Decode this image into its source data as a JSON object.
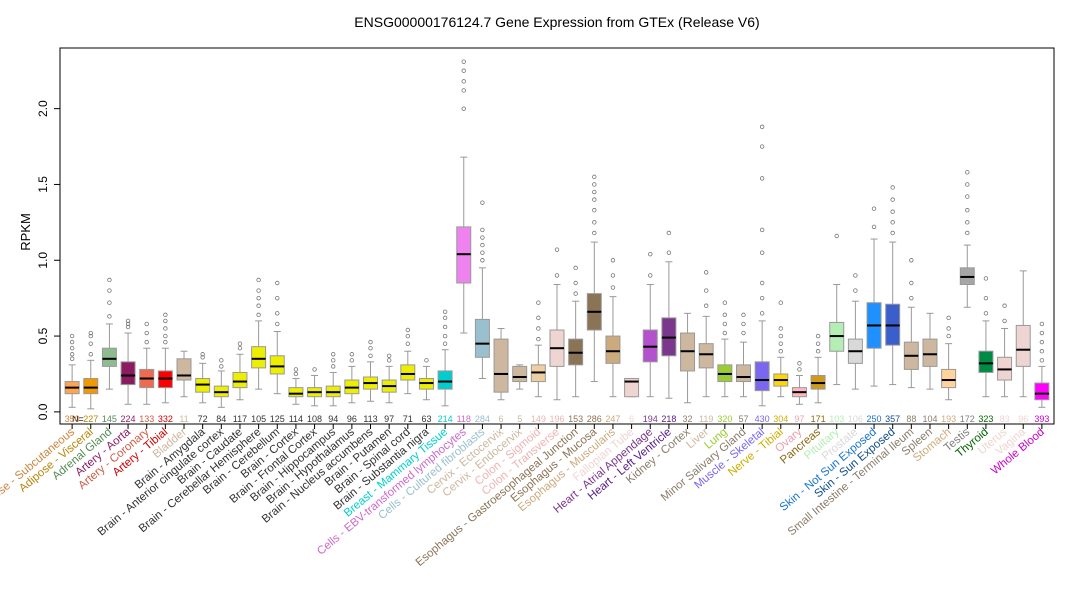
{
  "chart_data": {
    "type": "boxplot",
    "title": "ENSG00000176124.7 Gene Expression from GTEx (Release V6)",
    "ylabel": "RPKM",
    "xlabel": "",
    "ylim": [
      -0.08,
      2.4
    ],
    "yticks": [
      0.0,
      0.5,
      1.0,
      1.5,
      2.0
    ],
    "ytick_labels": [
      "0.0",
      "0.5",
      "1.0",
      "1.5",
      "2.0"
    ],
    "n_prefix": "N=",
    "grid": false,
    "legend": "none",
    "tissues": [
      {
        "name": "Adipose - Subcutaneous",
        "n": "350",
        "color": "#FFA54F",
        "label_color": "#CD853F",
        "stats": [
          0.03,
          0.12,
          0.16,
          0.2,
          0.31
        ],
        "outliers": [
          0.35,
          0.38,
          0.42,
          0.46,
          0.5
        ]
      },
      {
        "name": "Adipose - Visceral",
        "n": "227",
        "color": "#EE9A00",
        "label_color": "#B8860B",
        "stats": [
          0.02,
          0.12,
          0.16,
          0.22,
          0.34
        ],
        "outliers": [
          0.38,
          0.45,
          0.5,
          0.52
        ]
      },
      {
        "name": "Adrenal Gland",
        "n": "145",
        "color": "#8FBC8F",
        "label_color": "#548B54",
        "stats": [
          0.15,
          0.3,
          0.35,
          0.42,
          0.58
        ],
        "outliers": [
          0.63,
          0.72,
          0.8,
          0.87
        ]
      },
      {
        "name": "Artery - Aorta",
        "n": "224",
        "color": "#8B1C62",
        "label_color": "#8B1C62",
        "stats": [
          0.05,
          0.18,
          0.24,
          0.33,
          0.52
        ],
        "outliers": [
          0.56,
          0.58,
          0.6
        ]
      },
      {
        "name": "Artery - Coronary",
        "n": "133",
        "color": "#EE6A50",
        "label_color": "#CD5B45",
        "stats": [
          0.05,
          0.16,
          0.22,
          0.28,
          0.42
        ],
        "outliers": [
          0.46,
          0.52,
          0.58
        ]
      },
      {
        "name": "Artery - Tibial",
        "n": "332",
        "color": "#FF0000",
        "label_color": "#CD0000",
        "stats": [
          0.06,
          0.16,
          0.22,
          0.27,
          0.42
        ],
        "outliers": [
          0.46,
          0.5,
          0.55,
          0.6,
          0.64
        ]
      },
      {
        "name": "Bladder",
        "n": "11",
        "color": "#CDB79E",
        "label_color": "#CDB79E",
        "stats": [
          0.1,
          0.21,
          0.24,
          0.35,
          0.4
        ],
        "outliers": []
      },
      {
        "name": "Brain - Amygdala",
        "n": "72",
        "color": "#EEEE00",
        "label_color": "#333333",
        "stats": [
          0.06,
          0.13,
          0.18,
          0.22,
          0.32
        ],
        "outliers": [
          0.36,
          0.38
        ]
      },
      {
        "name": "Brain - Anterior cingulate cortex",
        "n": "84",
        "color": "#EEEE00",
        "label_color": "#333333",
        "stats": [
          0.03,
          0.1,
          0.13,
          0.17,
          0.27
        ],
        "outliers": [
          0.3,
          0.34
        ]
      },
      {
        "name": "Brain - Caudate",
        "n": "117",
        "color": "#EEEE00",
        "label_color": "#333333",
        "stats": [
          0.08,
          0.16,
          0.2,
          0.26,
          0.38
        ],
        "outliers": [
          0.42,
          0.45
        ]
      },
      {
        "name": "Brain - Cerebellar Hemisphere",
        "n": "105",
        "color": "#EEEE00",
        "label_color": "#333333",
        "stats": [
          0.15,
          0.29,
          0.35,
          0.43,
          0.6
        ],
        "outliers": [
          0.64,
          0.7,
          0.75,
          0.8,
          0.87
        ]
      },
      {
        "name": "Brain - Cerebellum",
        "n": "125",
        "color": "#EEEE00",
        "label_color": "#333333",
        "stats": [
          0.12,
          0.25,
          0.3,
          0.37,
          0.53
        ],
        "outliers": [
          0.58,
          0.65,
          0.75,
          0.85
        ]
      },
      {
        "name": "Brain - Cortex",
        "n": "114",
        "color": "#EEEE00",
        "label_color": "#333333",
        "stats": [
          0.05,
          0.1,
          0.12,
          0.16,
          0.22
        ],
        "outliers": [
          0.25,
          0.28
        ]
      },
      {
        "name": "Brain - Frontal Cortex",
        "n": "108",
        "color": "#EEEE00",
        "label_color": "#333333",
        "stats": [
          0.04,
          0.1,
          0.13,
          0.16,
          0.24
        ],
        "outliers": [
          0.28
        ]
      },
      {
        "name": "Brain - Hippocampus",
        "n": "94",
        "color": "#EEEE00",
        "label_color": "#333333",
        "stats": [
          0.04,
          0.1,
          0.13,
          0.17,
          0.26
        ],
        "outliers": [
          0.3,
          0.34,
          0.38
        ]
      },
      {
        "name": "Brain - Hypothalamus",
        "n": "96",
        "color": "#EEEE00",
        "label_color": "#333333",
        "stats": [
          0.06,
          0.12,
          0.16,
          0.21,
          0.3
        ],
        "outliers": [
          0.34,
          0.38
        ]
      },
      {
        "name": "Brain - Nucleus accumbens",
        "n": "113",
        "color": "#EEEE00",
        "label_color": "#333333",
        "stats": [
          0.07,
          0.15,
          0.19,
          0.23,
          0.33
        ],
        "outliers": [
          0.37,
          0.42,
          0.46
        ]
      },
      {
        "name": "Brain - Putamen",
        "n": "97",
        "color": "#EEEE00",
        "label_color": "#333333",
        "stats": [
          0.06,
          0.13,
          0.17,
          0.21,
          0.3
        ],
        "outliers": [
          0.34,
          0.37
        ]
      },
      {
        "name": "Brain - Spinal cord",
        "n": "71",
        "color": "#EEEE00",
        "label_color": "#333333",
        "stats": [
          0.12,
          0.21,
          0.25,
          0.31,
          0.4
        ],
        "outliers": [
          0.45,
          0.5,
          0.54
        ]
      },
      {
        "name": "Brain - Substantia nigra",
        "n": "63",
        "color": "#EEEE00",
        "label_color": "#333333",
        "stats": [
          0.08,
          0.15,
          0.19,
          0.22,
          0.3
        ],
        "outliers": [
          0.34
        ]
      },
      {
        "name": "Breast - Mammary Tissue",
        "n": "214",
        "color": "#00CDCD",
        "label_color": "#00CDCD",
        "stats": [
          0.04,
          0.15,
          0.2,
          0.27,
          0.41
        ],
        "outliers": [
          0.45,
          0.5,
          0.56,
          0.62,
          0.66
        ]
      },
      {
        "name": "Cells - EBV-transformed lymphocytes",
        "n": "118",
        "color": "#EE82EE",
        "label_color": "#CD69C9",
        "stats": [
          0.52,
          0.85,
          1.04,
          1.22,
          1.68
        ],
        "outliers": [
          2.0,
          2.12,
          2.18,
          2.25,
          2.31
        ]
      },
      {
        "name": "Cells - Cultured fibroblasts",
        "n": "284",
        "color": "#9AC0CD",
        "label_color": "#9AC0CD",
        "stats": [
          0.22,
          0.36,
          0.45,
          0.61,
          0.95
        ],
        "outliers": [
          1.0,
          1.05,
          1.1,
          1.15,
          1.2,
          1.38
        ]
      },
      {
        "name": "Cervix - Ectocervix",
        "n": "6",
        "color": "#CDB79E",
        "label_color": "#CDB79E",
        "stats": [
          0.08,
          0.13,
          0.25,
          0.48,
          0.55
        ],
        "outliers": []
      },
      {
        "name": "Cervix - Endocervix",
        "n": "5",
        "color": "#CDB79E",
        "label_color": "#CDB79E",
        "stats": [
          0.15,
          0.2,
          0.23,
          0.3,
          0.31
        ],
        "outliers": []
      },
      {
        "name": "Colon - Sigmoid",
        "n": "149",
        "color": "#EECFA1",
        "label_color": "#EEB4B4",
        "stats": [
          0.1,
          0.2,
          0.26,
          0.31,
          0.44
        ],
        "outliers": [
          0.48,
          0.55,
          0.62,
          0.72
        ]
      },
      {
        "name": "Colon - Transverse",
        "n": "196",
        "color": "#EED5D2",
        "label_color": "#EEB4B4",
        "stats": [
          0.08,
          0.3,
          0.42,
          0.54,
          0.84
        ],
        "outliers": [
          0.9,
          1.07
        ]
      },
      {
        "name": "Esophagus - Gastroesophageal Junction",
        "n": "153",
        "color": "#8B7355",
        "label_color": "#8B7355",
        "stats": [
          0.1,
          0.31,
          0.39,
          0.48,
          0.73
        ],
        "outliers": [
          0.78,
          0.85,
          0.95
        ]
      },
      {
        "name": "Esophagus - Mucosa",
        "n": "286",
        "color": "#8B7355",
        "label_color": "#8B7355",
        "stats": [
          0.2,
          0.54,
          0.66,
          0.78,
          1.12
        ],
        "outliers": [
          1.18,
          1.25,
          1.33,
          1.4,
          1.45,
          1.5,
          1.55
        ]
      },
      {
        "name": "Esophagus - Muscularis",
        "n": "247",
        "color": "#CDAA7D",
        "label_color": "#CDAA7D",
        "stats": [
          0.1,
          0.32,
          0.4,
          0.5,
          0.76
        ],
        "outliers": [
          0.82,
          0.9,
          1.0
        ]
      },
      {
        "name": "Fallopian Tube",
        "n": "6",
        "color": "#EED5D2",
        "label_color": "#EED5D2",
        "stats": [
          0.1,
          0.1,
          0.2,
          0.22,
          0.22
        ],
        "outliers": []
      },
      {
        "name": "Heart - Atrial Appendage",
        "n": "194",
        "color": "#B452CD",
        "label_color": "#7A378B",
        "stats": [
          0.1,
          0.33,
          0.43,
          0.54,
          0.84
        ],
        "outliers": [
          0.9,
          1.04
        ]
      },
      {
        "name": "Heart - Left Ventricle",
        "n": "218",
        "color": "#7A378B",
        "label_color": "#551A8B",
        "stats": [
          0.09,
          0.37,
          0.49,
          0.62,
          0.99
        ],
        "outliers": [
          1.05,
          1.18
        ]
      },
      {
        "name": "Kidney - Cortex",
        "n": "32",
        "color": "#CDB79E",
        "label_color": "#8B7D6B",
        "stats": [
          0.06,
          0.27,
          0.4,
          0.52,
          0.65
        ],
        "outliers": []
      },
      {
        "name": "Liver",
        "n": "119",
        "color": "#CDB79E",
        "label_color": "#CDB79E",
        "stats": [
          0.1,
          0.29,
          0.38,
          0.45,
          0.63
        ],
        "outliers": [
          0.7,
          0.8,
          0.92
        ]
      },
      {
        "name": "Lung",
        "n": "320",
        "color": "#9ACD32",
        "label_color": "#9ACD32",
        "stats": [
          0.1,
          0.2,
          0.25,
          0.31,
          0.48
        ],
        "outliers": [
          0.52,
          0.58,
          0.64,
          0.72
        ]
      },
      {
        "name": "Minor Salivary Gland",
        "n": "57",
        "color": "#CDB79E",
        "label_color": "#8B7D6B",
        "stats": [
          0.1,
          0.2,
          0.23,
          0.31,
          0.46
        ],
        "outliers": [
          0.52,
          0.58,
          0.64
        ]
      },
      {
        "name": "Muscle - Skeletal",
        "n": "430",
        "color": "#7A67EE",
        "label_color": "#7A67EE",
        "stats": [
          0.04,
          0.14,
          0.21,
          0.33,
          0.6
        ],
        "outliers": [
          0.65,
          0.75,
          0.85,
          1.05,
          1.2,
          1.54,
          1.75,
          1.88
        ]
      },
      {
        "name": "Nerve - Tibial",
        "n": "304",
        "color": "#FFD700",
        "label_color": "#CDAD00",
        "stats": [
          0.1,
          0.17,
          0.21,
          0.25,
          0.36
        ],
        "outliers": [
          0.4,
          0.45,
          0.5,
          0.55,
          0.72
        ]
      },
      {
        "name": "Ovary",
        "n": "97",
        "color": "#FFB6C1",
        "label_color": "#EEA2AD",
        "stats": [
          0.05,
          0.1,
          0.13,
          0.16,
          0.24
        ],
        "outliers": [
          0.28,
          0.32
        ]
      },
      {
        "name": "Pancreas",
        "n": "171",
        "color": "#CD9B1D",
        "label_color": "#8B6914",
        "stats": [
          0.06,
          0.15,
          0.19,
          0.24,
          0.36
        ],
        "outliers": [
          0.4,
          0.45,
          0.5
        ]
      },
      {
        "name": "Pituitary",
        "n": "103",
        "color": "#B4EEB4",
        "label_color": "#B4EEB4",
        "stats": [
          0.18,
          0.4,
          0.5,
          0.59,
          0.84
        ],
        "outliers": [
          1.16
        ]
      },
      {
        "name": "Prostate",
        "n": "106",
        "color": "#D9D9D9",
        "label_color": "#D9D9D9",
        "stats": [
          0.15,
          0.32,
          0.4,
          0.48,
          0.73
        ],
        "outliers": [
          0.8,
          0.9
        ]
      },
      {
        "name": "Skin - Not Sun Exposed",
        "n": "250",
        "color": "#1E90FF",
        "label_color": "#1874CD",
        "stats": [
          0.17,
          0.42,
          0.57,
          0.72,
          1.14
        ],
        "outliers": [
          1.22,
          1.34
        ]
      },
      {
        "name": "Skin - Sun Exposed",
        "n": "357",
        "color": "#3A5FCD",
        "label_color": "#104E8B",
        "stats": [
          0.18,
          0.44,
          0.57,
          0.71,
          1.12
        ],
        "outliers": [
          1.18,
          1.25,
          1.32,
          1.4,
          1.48
        ]
      },
      {
        "name": "Small Intestine - Terminal Ileum",
        "n": "88",
        "color": "#CDB79E",
        "label_color": "#8B7D6B",
        "stats": [
          0.16,
          0.28,
          0.37,
          0.46,
          0.69
        ],
        "outliers": [
          0.75,
          0.85,
          1.0
        ]
      },
      {
        "name": "Spleen",
        "n": "104",
        "color": "#CDB79E",
        "label_color": "#8B7D6B",
        "stats": [
          0.15,
          0.3,
          0.38,
          0.48,
          0.65
        ],
        "outliers": []
      },
      {
        "name": "Stomach",
        "n": "193",
        "color": "#FFD39B",
        "label_color": "#CDAA7D",
        "stats": [
          0.08,
          0.16,
          0.21,
          0.28,
          0.45
        ],
        "outliers": [
          0.5,
          0.55,
          0.62
        ]
      },
      {
        "name": "Testis",
        "n": "172",
        "color": "#A6A6A6",
        "label_color": "#7F7F7F",
        "stats": [
          0.69,
          0.84,
          0.89,
          0.95,
          1.1
        ],
        "outliers": [
          1.18,
          1.25,
          1.33,
          1.42,
          1.5,
          1.58
        ]
      },
      {
        "name": "Thyroid",
        "n": "323",
        "color": "#008B45",
        "label_color": "#006400",
        "stats": [
          0.1,
          0.26,
          0.32,
          0.4,
          0.6
        ],
        "outliers": [
          0.65,
          0.75,
          0.88
        ]
      },
      {
        "name": "Uterus",
        "n": "83",
        "color": "#EED5D2",
        "label_color": "#EED5D2",
        "stats": [
          0.1,
          0.21,
          0.28,
          0.36,
          0.55
        ],
        "outliers": [
          0.6,
          0.7
        ]
      },
      {
        "name": "Vagina",
        "n": "96",
        "color": "#EED5D2",
        "label_color": "#EED5D2",
        "stats": [
          0.1,
          0.3,
          0.41,
          0.57,
          0.93
        ],
        "outliers": []
      },
      {
        "name": "Whole Blood",
        "n": "393",
        "color": "#FF00FF",
        "label_color": "#CD00CD",
        "stats": [
          0.03,
          0.08,
          0.12,
          0.19,
          0.3
        ],
        "outliers": [
          0.34,
          0.4,
          0.46,
          0.52,
          0.58
        ]
      }
    ]
  }
}
